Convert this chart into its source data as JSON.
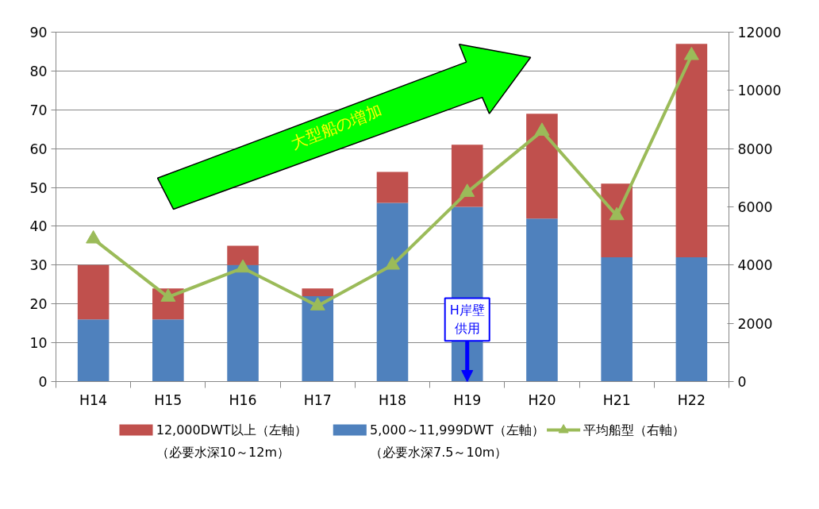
{
  "chart_data": {
    "type": "bar",
    "stacked": true,
    "categories": [
      "H14",
      "H15",
      "H16",
      "H17",
      "H18",
      "H19",
      "H20",
      "H21",
      "H22"
    ],
    "series": [
      {
        "name": "5,000～11,999DWT（左軸）（必要水深7.5～10m）",
        "color": "#4f81bd",
        "values": [
          16,
          16,
          30,
          22,
          46,
          45,
          42,
          32,
          32
        ]
      },
      {
        "name": "12,000DWT以上（左軸）（必要水深10～12m）",
        "color": "#c0504d",
        "values": [
          14,
          8,
          5,
          2,
          8,
          16,
          27,
          19,
          55
        ]
      },
      {
        "name": "平均船型（右軸）",
        "type": "line",
        "axis": "y2",
        "color": "#9bbb59",
        "marker": "triangle",
        "values": [
          4900,
          2900,
          3900,
          2600,
          4000,
          6500,
          8600,
          5700,
          11200
        ]
      }
    ],
    "ylim": [
      0,
      90
    ],
    "yticks": [
      0,
      10,
      20,
      30,
      40,
      50,
      60,
      70,
      80,
      90
    ],
    "y2lim": [
      0,
      12000
    ],
    "y2ticks": [
      0,
      2000,
      4000,
      6000,
      8000,
      10000,
      12000
    ],
    "grid": "y",
    "legend": "bottom",
    "annotations": [
      "大型船の増加",
      {
        "text": "H岸壁供用",
        "x": "H19",
        "y": 0
      }
    ]
  }
}
